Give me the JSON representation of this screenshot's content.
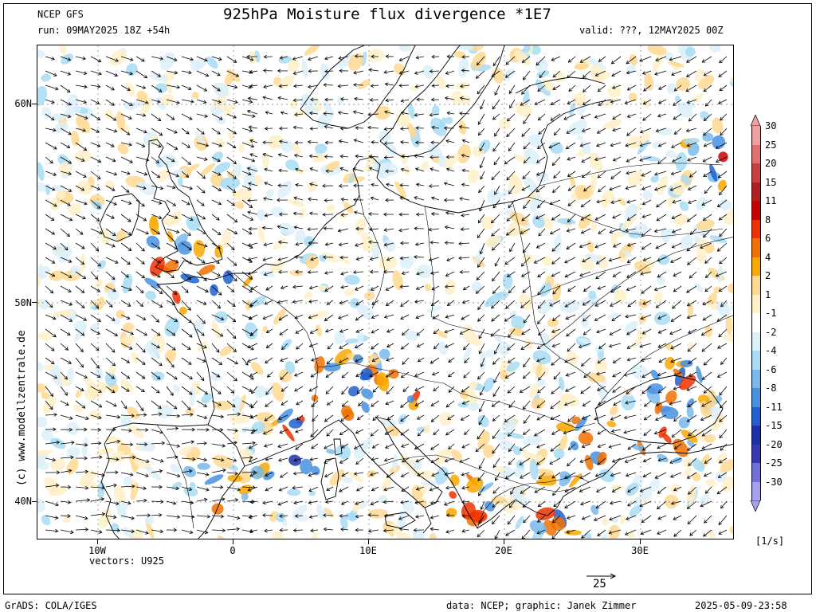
{
  "header": {
    "model": "NCEP GFS",
    "run": "run: 09MAY2025 18Z +54h",
    "title": "925hPa Moisture flux divergence *1E7",
    "valid": "valid: ???, 12MAY2025 00Z"
  },
  "axes": {
    "lat_labels": [
      "60N",
      "50N",
      "40N"
    ],
    "lon_labels": [
      "10W",
      "0",
      "10E",
      "20E",
      "30E"
    ]
  },
  "vectors_label": "vectors: U925",
  "arrow_ref_value": "25",
  "units": "[1/s]",
  "colorbar": {
    "levels": [
      {
        "label": "30",
        "color": "#f0a0a0"
      },
      {
        "label": "25",
        "color": "#e07070"
      },
      {
        "label": "20",
        "color": "#c84040"
      },
      {
        "label": "15",
        "color": "#b02020"
      },
      {
        "label": "11",
        "color": "#c80000"
      },
      {
        "label": "8",
        "color": "#f03000"
      },
      {
        "label": "6",
        "color": "#f07000"
      },
      {
        "label": "4",
        "color": "#f8a800"
      },
      {
        "label": "2",
        "color": "#ffd890"
      },
      {
        "label": "1",
        "color": "#fff0c8"
      },
      {
        "label": "-1",
        "color": "#ffffff"
      },
      {
        "label": "-2",
        "color": "#dcf0fa"
      },
      {
        "label": "-4",
        "color": "#a8dcf4"
      },
      {
        "label": "-6",
        "color": "#78b8ec"
      },
      {
        "label": "-8",
        "color": "#4890e0"
      },
      {
        "label": "-11",
        "color": "#2060d0"
      },
      {
        "label": "-15",
        "color": "#1c30a8"
      },
      {
        "label": "-20",
        "color": "#3838b0"
      },
      {
        "label": "-25",
        "color": "#7070d8"
      },
      {
        "label": "-30",
        "color": "#a8a0f0"
      }
    ]
  },
  "watermark": "(c) www.modellzentrale.de",
  "footer": {
    "left": "GrADS: COLA/IGES",
    "center": "data: NCEP; graphic: Janek Zimmer",
    "right": "2025-05-09-23:58"
  },
  "colors": {
    "border": "#000000",
    "coast": "#000000",
    "arrow": "#000000"
  }
}
